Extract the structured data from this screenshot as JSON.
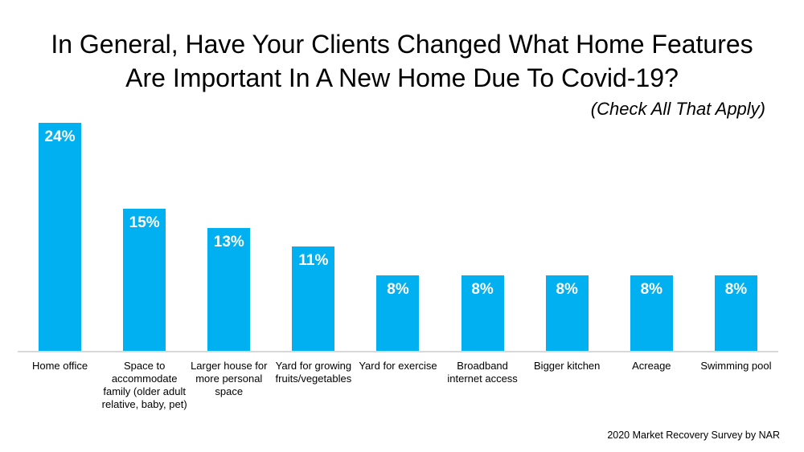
{
  "page": {
    "title_lines": [
      "In General, Have Your Clients Changed What Home Features",
      "Are Important In A New Home Due To Covid-19?"
    ],
    "subtitle": "(Check All That Apply)",
    "source": "2020 Market Recovery Survey by NAR"
  },
  "colors": {
    "bar": "#00B0F0",
    "value_label": "#FFFFFF",
    "axis_line": "#D8D8D8",
    "text": "#000000",
    "background": "#FFFFFF"
  },
  "chart_data": {
    "type": "bar",
    "title": "In General, Have Your Clients Changed What Home Features Are Important In A New Home Due To Covid-19?",
    "subtitle": "(Check All That Apply)",
    "categories": [
      "Home office",
      "Space to accommodate family (older adult relative, baby, pet)",
      "Larger house for more personal space",
      "Yard for growing fruits/vegetables",
      "Yard for exercise",
      "Broadband internet access",
      "Bigger kitchen",
      "Acreage",
      "Swimming pool"
    ],
    "category_lines": [
      [
        "Home office"
      ],
      [
        "Space to",
        "accommodate",
        "family (older adult",
        "relative, baby, pet)"
      ],
      [
        "Larger house for",
        "more personal",
        "space"
      ],
      [
        "Yard for growing",
        "fruits/vegetables"
      ],
      [
        "Yard for exercise"
      ],
      [
        "Broadband",
        "internet access"
      ],
      [
        "Bigger kitchen"
      ],
      [
        "Acreage"
      ],
      [
        "Swimming pool"
      ]
    ],
    "values": [
      24,
      15,
      13,
      11,
      8,
      8,
      8,
      8,
      8
    ],
    "value_labels": [
      "24%",
      "15%",
      "13%",
      "11%",
      "8%",
      "8%",
      "8%",
      "8%",
      "8%"
    ],
    "unit": "%",
    "ylim": [
      0,
      24
    ],
    "grid": false,
    "legend": false,
    "bar_color": "#00B0F0",
    "source": "2020 Market Recovery Survey by NAR"
  }
}
